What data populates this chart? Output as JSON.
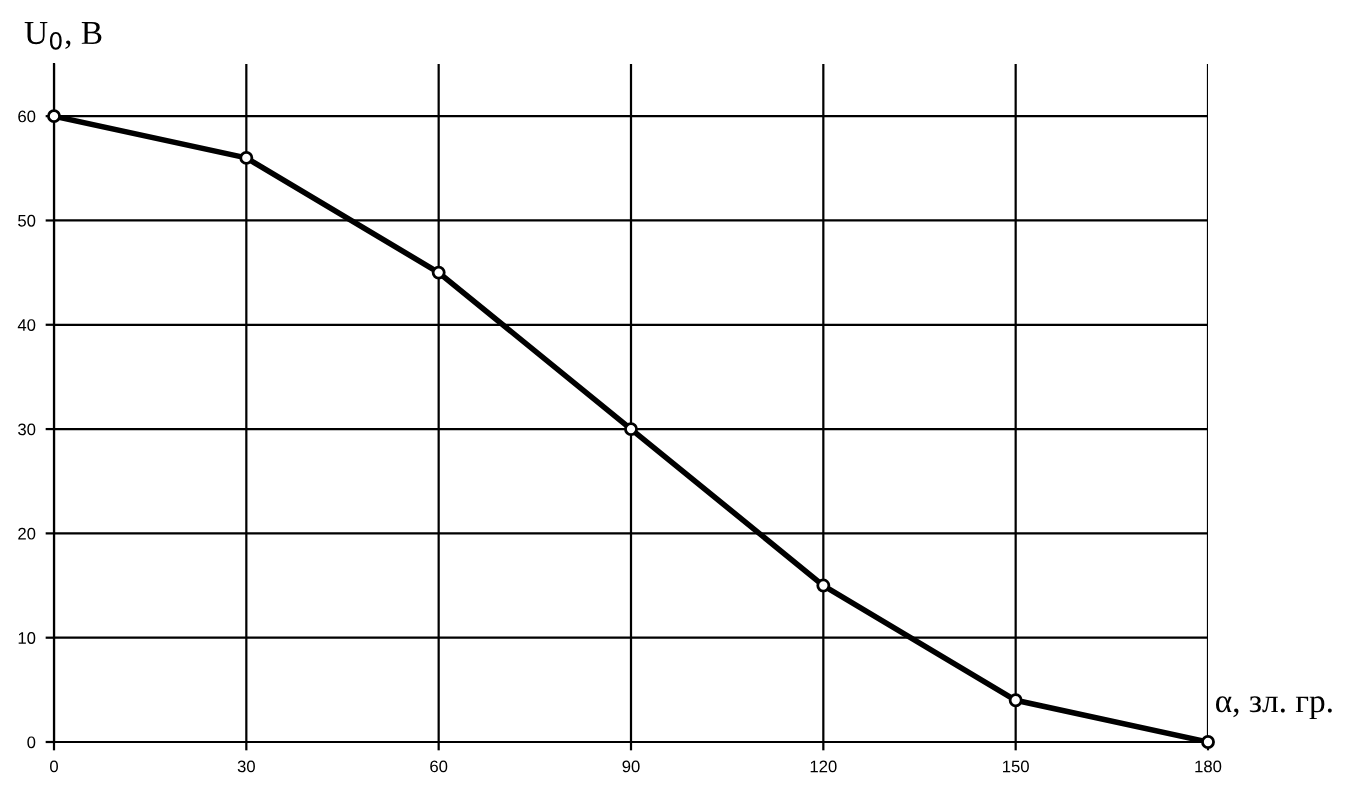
{
  "chart_data": {
    "type": "line",
    "xlabel": "α, зл. гр.",
    "ylabel": "U$_{0}$, В",
    "x": [
      0,
      30,
      60,
      90,
      120,
      150,
      180
    ],
    "series": [
      {
        "color": "#000000",
        "values": [
          60,
          56,
          45,
          30,
          15,
          4,
          0
        ]
      }
    ],
    "xlim": [
      0,
      180
    ],
    "xticks": [
      0,
      30,
      60,
      90,
      120,
      150,
      180
    ],
    "ylim": [
      0,
      65
    ],
    "yticks": [
      0,
      10,
      20,
      30,
      40,
      50,
      60
    ],
    "grid": true,
    "marker": "circle",
    "line_style": "solid",
    "legend": false
  }
}
